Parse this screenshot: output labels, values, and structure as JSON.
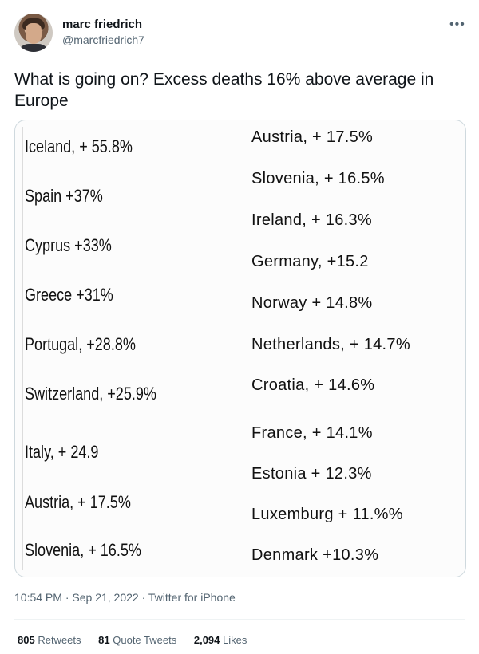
{
  "author": {
    "name": "marc friedrich",
    "handle": "@marcfriedrich7",
    "more_icon": "•••"
  },
  "tweet": {
    "text": "What is going on? Excess deaths 16% above average in Europe"
  },
  "image": {
    "left_column": [
      "Iceland, + 55.8%",
      "Spain +37%",
      "Cyprus +33%",
      "Greece +31%",
      "Portugal, +28.8%",
      "Switzerland, +25.9%",
      "Italy, + 24.9",
      "Austria, + 17.5%",
      "Slovenia, + 16.5%"
    ],
    "right_column": [
      "Austria, + 17.5%",
      "Slovenia, + 16.5%",
      "Ireland, + 16.3%",
      "Germany, +15.2",
      "Norway + 14.8%",
      "Netherlands, + 14.7%",
      "Croatia, + 14.6%",
      "France, + 14.1%",
      "Estonia + 12.3%",
      "Luxemburg + 11.%%",
      "Denmark +10.3%"
    ]
  },
  "meta": {
    "time": "10:54 PM",
    "separator": "·",
    "date": "Sep 21, 2022",
    "source": "Twitter for iPhone"
  },
  "stats": {
    "retweets_count": "805",
    "retweets_label": "Retweets",
    "quotes_count": "81",
    "quotes_label": "Quote Tweets",
    "likes_count": "2,094",
    "likes_label": "Likes"
  }
}
